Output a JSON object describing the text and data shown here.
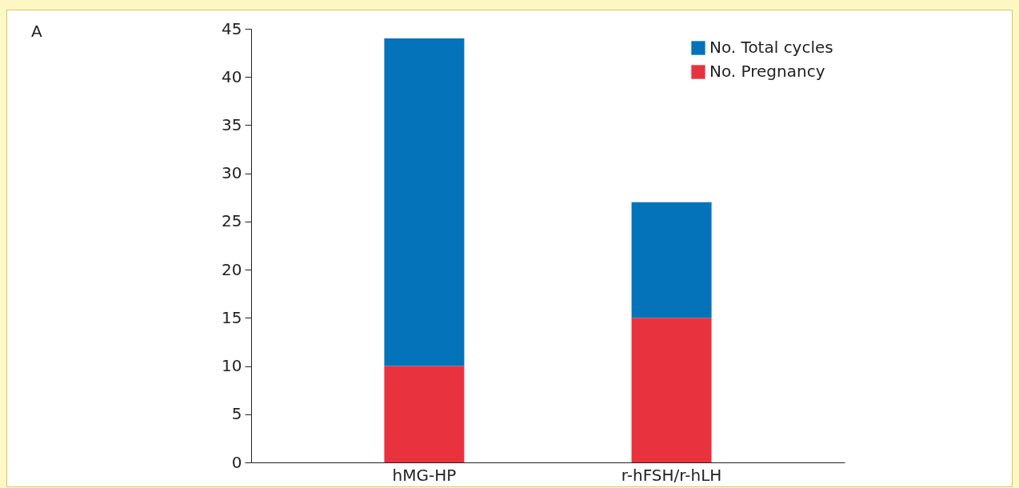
{
  "chart_data": {
    "type": "bar",
    "stacked": true,
    "categories": [
      "hMG-HP",
      "r-hFSH/r-hLH"
    ],
    "series": [
      {
        "name": "No. Pregnancy",
        "color": "#e8333f",
        "values": [
          10,
          15
        ]
      },
      {
        "name": "No. Total cycles",
        "color": "#0573b9",
        "values": [
          34,
          12
        ]
      }
    ],
    "ylim": [
      0,
      45
    ],
    "yticks": [
      0,
      5,
      10,
      15,
      20,
      25,
      30,
      35,
      40,
      45
    ],
    "grid": false,
    "legend": "top right",
    "annotations": [
      "A"
    ]
  }
}
